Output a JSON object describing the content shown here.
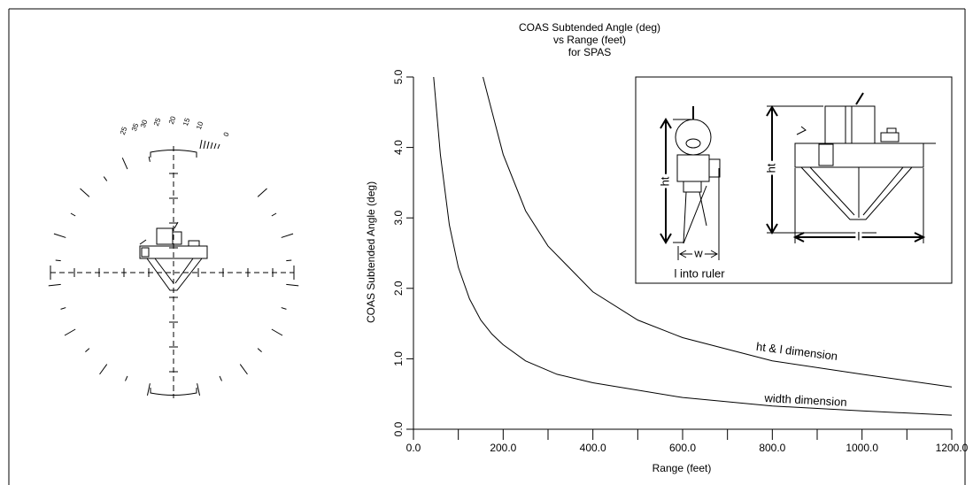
{
  "reticle": {
    "scale_labels": [
      "25",
      "35",
      "30",
      "25",
      "20",
      "15",
      "10",
      "0"
    ]
  },
  "chart_data": {
    "type": "line",
    "title": "COAS Subtended Angle (deg)",
    "subtitle": [
      "vs Range (feet)",
      "for SPAS"
    ],
    "x_label": "Range (feet)",
    "y_label": "COAS Subtended Angle (deg)",
    "xlim": [
      0,
      1200
    ],
    "ylim": [
      0,
      5
    ],
    "xticks": [
      {
        "value": 0,
        "label": "0.0"
      },
      {
        "value": 200,
        "label": "200.0"
      },
      {
        "value": 400,
        "label": "400.0"
      },
      {
        "value": 600,
        "label": "600.0"
      },
      {
        "value": 800,
        "label": "800.0"
      },
      {
        "value": 1000,
        "label": "1000.0"
      },
      {
        "value": 1200,
        "label": "1200.0"
      }
    ],
    "xminorticks": [
      100,
      300,
      500,
      700,
      900,
      1100
    ],
    "yticks": [
      {
        "value": 0,
        "label": "0.0"
      },
      {
        "value": 1,
        "label": "1.0"
      },
      {
        "value": 2,
        "label": "2.0"
      },
      {
        "value": 3,
        "label": "3.0"
      },
      {
        "value": 4,
        "label": "4.0"
      },
      {
        "value": 5,
        "label": "5.0"
      }
    ],
    "series": [
      {
        "name": "ht & l dimension",
        "color": "#000000",
        "x": [
          155,
          200,
          250,
          300,
          400,
          500,
          600,
          800,
          1000,
          1200
        ],
        "values": [
          5.0,
          3.9,
          3.1,
          2.6,
          1.95,
          1.55,
          1.3,
          0.97,
          0.78,
          0.6
        ]
      },
      {
        "name": "width dimension",
        "color": "#000000",
        "x": [
          45,
          60,
          80,
          100,
          125,
          150,
          175,
          200,
          250,
          320,
          400,
          600,
          800,
          1000,
          1200
        ],
        "values": [
          5.0,
          3.9,
          2.9,
          2.3,
          1.85,
          1.55,
          1.35,
          1.2,
          0.97,
          0.78,
          0.66,
          0.45,
          0.33,
          0.26,
          0.2
        ]
      }
    ],
    "inset": {
      "labels": [
        "ht",
        "w",
        "l into ruler",
        "ht",
        "l"
      ]
    }
  }
}
